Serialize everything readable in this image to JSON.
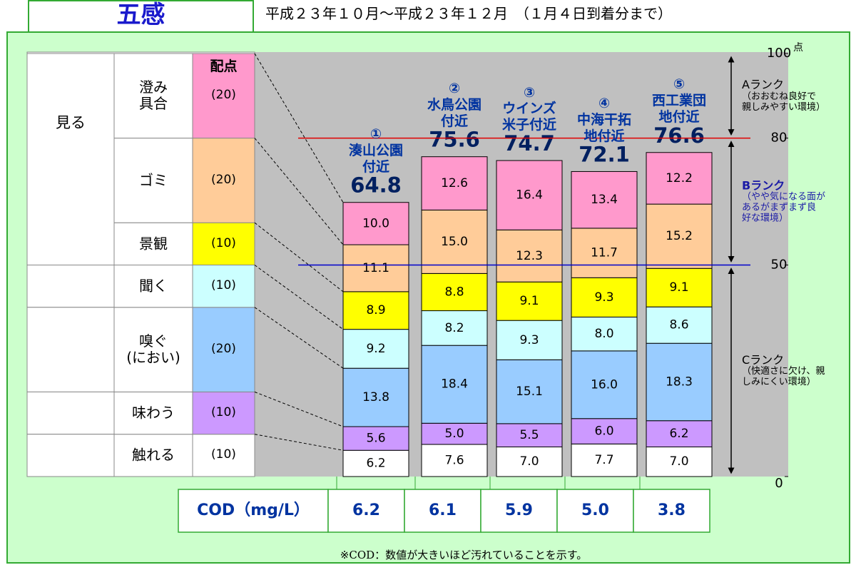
{
  "chart_data": {
    "type": "stacked-bar",
    "title": "五感",
    "subtitle": "平成２３年１０月～平成２３年１２月　（１月４日到着分まで）",
    "points_header": "配点",
    "categories": [
      "①\n湊山公園\n付近",
      "②\n水鳥公園\n付近",
      "③\nウインズ\n米子付近",
      "④\n中海干拓\n地付近",
      "⑤\n西工業団\n地付近"
    ],
    "totals": [
      64.8,
      75.6,
      74.7,
      72.1,
      76.6
    ],
    "senses": [
      {
        "name": "見る",
        "series": [
          {
            "name": "澄み\n具合",
            "color": "#ff99cc",
            "max": 20,
            "max_label": "(20)",
            "values": [
              10.0,
              12.6,
              16.4,
              13.4,
              12.2
            ],
            "value_labels": [
              "10.0",
              "12.6",
              "16.4",
              "13.4",
              "12.2"
            ]
          },
          {
            "name": "ゴミ",
            "color": "#ffcc99",
            "max": 20,
            "max_label": "(20)",
            "values": [
              11.1,
              15.0,
              12.3,
              11.7,
              15.2
            ],
            "value_labels": [
              "11.1",
              "15.0",
              "12.3",
              "11.7",
              "15.2"
            ]
          },
          {
            "name": "景観",
            "color": "#ffff00",
            "max": 10,
            "max_label": "(10)",
            "values": [
              8.9,
              8.8,
              9.1,
              9.3,
              9.1
            ],
            "value_labels": [
              "8.9",
              "8.8",
              "9.1",
              "9.3",
              "9.1"
            ]
          }
        ]
      },
      {
        "name": "",
        "series": [
          {
            "name": "聞く",
            "color": "#ccffff",
            "max": 10,
            "max_label": "(10)",
            "values": [
              9.2,
              8.2,
              9.3,
              8.0,
              8.6
            ],
            "value_labels": [
              "9.2",
              "8.2",
              "9.3",
              "8.0",
              "8.6"
            ]
          }
        ]
      },
      {
        "name": "",
        "series": [
          {
            "name": "嗅ぐ\n(におい)",
            "color": "#99ccff",
            "max": 20,
            "max_label": "(20)",
            "values": [
              13.8,
              18.4,
              15.1,
              16.0,
              18.3
            ],
            "value_labels": [
              "13.8",
              "18.4",
              "15.1",
              "16.0",
              "18.3"
            ]
          }
        ]
      },
      {
        "name": "",
        "series": [
          {
            "name": "味わう",
            "color": "#cc99ff",
            "max": 10,
            "max_label": "(10)",
            "values": [
              5.6,
              5.0,
              5.5,
              6.0,
              6.2
            ],
            "value_labels": [
              "5.6",
              "5.0",
              "5.5",
              "6.0",
              "6.2"
            ]
          }
        ]
      },
      {
        "name": "",
        "series": [
          {
            "name": "触れる",
            "color": "#ffffff",
            "max": 10,
            "max_label": "(10)",
            "values": [
              6.2,
              7.6,
              7.0,
              7.7,
              7.0
            ],
            "value_labels": [
              "6.2",
              "7.6",
              "7.0",
              "7.7",
              "7.0"
            ]
          }
        ]
      }
    ],
    "ylim": [
      0,
      100
    ],
    "yticks": [
      0,
      50,
      80,
      100
    ],
    "y_unit": "点",
    "ref_lines": [
      {
        "value": 80,
        "color": "#e00000"
      },
      {
        "value": 50,
        "color": "#0000cc"
      }
    ],
    "ranks": [
      {
        "title": "Aランク",
        "text": "（おおむね良好で\n親しみやすい環境）",
        "range": [
          80,
          100
        ],
        "color": "#000000"
      },
      {
        "title": "Bランク",
        "text": "（やや気になる面が\nあるがまずまず良\n好な環境）",
        "range": [
          50,
          80
        ],
        "color": "#1a1aa6"
      },
      {
        "title": "Cランク",
        "text": "（快適さに欠け、親\nしみにくい環境）",
        "range": [
          0,
          50
        ],
        "color": "#000000"
      }
    ],
    "cod": {
      "label": "COD（mg/L）",
      "values": [
        6.2,
        6.1,
        5.9,
        5.0,
        3.8
      ],
      "value_labels": [
        "6.2",
        "6.1",
        "5.9",
        "5.0",
        "3.8"
      ]
    },
    "note": "※COD：数値が大きいほど汚れていることを示す。"
  }
}
